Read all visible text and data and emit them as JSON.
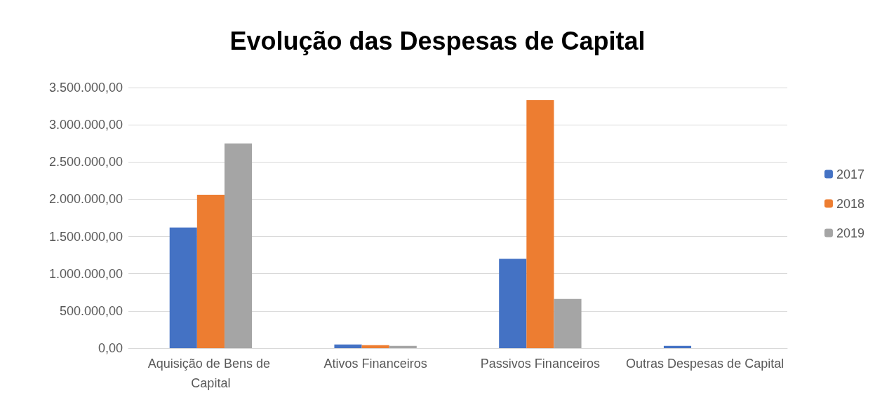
{
  "chart_data": {
    "type": "bar",
    "title": "Evolução das Despesas de Capital",
    "categories": [
      "Aquisição de Bens de Capital",
      "Ativos Financeiros",
      "Passivos Financeiros",
      "Outras Despesas de Capital"
    ],
    "series": [
      {
        "name": "2017",
        "color": "#4472c4",
        "values": [
          1620000,
          50000,
          1200000,
          30000
        ]
      },
      {
        "name": "2018",
        "color": "#ed7d31",
        "values": [
          2060000,
          40000,
          3330000,
          0
        ]
      },
      {
        "name": "2019",
        "color": "#a5a5a5",
        "values": [
          2750000,
          30000,
          660000,
          0
        ]
      }
    ],
    "ylim": [
      0,
      3500000
    ],
    "yticks": [
      {
        "value": 0,
        "label": "0,00"
      },
      {
        "value": 500000,
        "label": "500.000,00"
      },
      {
        "value": 1000000,
        "label": "1.000.000,00"
      },
      {
        "value": 1500000,
        "label": "1.500.000,00"
      },
      {
        "value": 2000000,
        "label": "2.000.000,00"
      },
      {
        "value": 2500000,
        "label": "2.500.000,00"
      },
      {
        "value": 3000000,
        "label": "3.000.000,00"
      },
      {
        "value": 3500000,
        "label": "3.500.000,00"
      }
    ],
    "grid": "y",
    "legend": "right"
  }
}
